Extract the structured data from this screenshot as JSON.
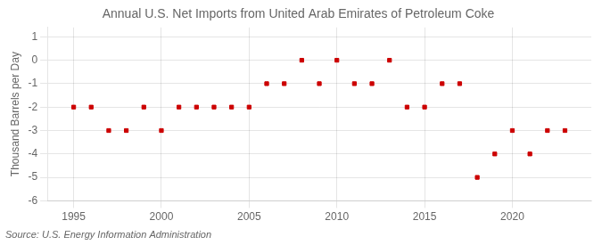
{
  "chart_data": {
    "type": "scatter",
    "title": "Annual U.S. Net Imports from United Arab Emirates of Petroleum Coke",
    "ylabel": "Thousand Barrels per Day",
    "source": "Source: U.S. Energy Information Administration",
    "x": [
      1995,
      1996,
      1997,
      1998,
      1999,
      2000,
      2001,
      2002,
      2003,
      2004,
      2005,
      2006,
      2007,
      2008,
      2009,
      2010,
      2011,
      2012,
      2013,
      2014,
      2015,
      2016,
      2017,
      2018,
      2019,
      2020,
      2021,
      2022,
      2023
    ],
    "values": [
      -2,
      -2,
      -3,
      -3,
      -2,
      -3,
      -2,
      -2,
      -2,
      -2,
      -2,
      -1,
      -1,
      0,
      -1,
      0,
      -1,
      -1,
      0,
      -2,
      -2,
      -1,
      -1,
      -5,
      -4,
      -3,
      -4,
      -3,
      -3
    ],
    "color": "#cc0000",
    "marker": "square",
    "xlim": [
      1993.5,
      2024.5
    ],
    "ylim": [
      -6,
      1.4
    ],
    "xticks": [
      1995,
      2000,
      2005,
      2010,
      2015,
      2020
    ],
    "yticks": [
      1,
      0,
      -1,
      -2,
      -3,
      -4,
      -5,
      -6
    ],
    "grid": true
  }
}
